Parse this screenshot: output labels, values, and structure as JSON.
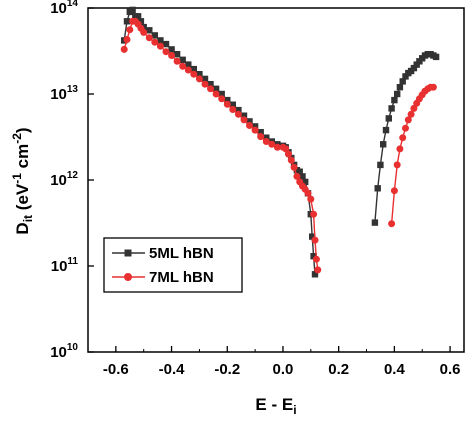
{
  "chart_data": {
    "type": "scatter",
    "xlabel": {
      "main": "E - E",
      "sub": "i"
    },
    "ylabel": {
      "main": "D",
      "sub": "it",
      "rest1": " (eV",
      "sup1": "-1",
      "rest2": " cm",
      "sup2": "-2",
      "rest3": ")"
    },
    "xlim": [
      -0.7,
      0.65
    ],
    "ylim_log10": [
      10,
      14
    ],
    "y_scale": "log",
    "x_ticks": [
      {
        "value": -0.6,
        "label": "-0.6"
      },
      {
        "value": -0.4,
        "label": "-0.4"
      },
      {
        "value": -0.2,
        "label": "-0.2"
      },
      {
        "value": 0.0,
        "label": "0.0"
      },
      {
        "value": 0.2,
        "label": "0.2"
      },
      {
        "value": 0.4,
        "label": "0.4"
      },
      {
        "value": 0.6,
        "label": "0.6"
      }
    ],
    "y_ticks": [
      {
        "exp": 10,
        "base": "10",
        "sup": "10"
      },
      {
        "exp": 11,
        "base": "10",
        "sup": "11"
      },
      {
        "exp": 12,
        "base": "10",
        "sup": "12"
      },
      {
        "exp": 13,
        "base": "10",
        "sup": "13"
      },
      {
        "exp": 14,
        "base": "10",
        "sup": "14"
      }
    ],
    "legend_position": "lower-left",
    "series": [
      {
        "name": "5ML hBN",
        "color": "#333333",
        "marker": "square",
        "segments": [
          [
            [
              -0.57,
              42000000000000.0
            ],
            [
              -0.56,
              70000000000000.0
            ],
            [
              -0.55,
              90000000000000.0
            ],
            [
              -0.54,
              95000000000000.0
            ],
            [
              -0.53,
              80000000000000.0
            ],
            [
              -0.52,
              80000000000000.0
            ],
            [
              -0.51,
              70000000000000.0
            ],
            [
              -0.5,
              60000000000000.0
            ],
            [
              -0.48,
              55000000000000.0
            ],
            [
              -0.46,
              48000000000000.0
            ],
            [
              -0.44,
              42000000000000.0
            ],
            [
              -0.42,
              38000000000000.0
            ],
            [
              -0.4,
              33000000000000.0
            ],
            [
              -0.38,
              29000000000000.0
            ],
            [
              -0.36,
              25000000000000.0
            ],
            [
              -0.34,
              22000000000000.0
            ],
            [
              -0.32,
              19500000000000.0
            ],
            [
              -0.3,
              17000000000000.0
            ],
            [
              -0.28,
              15000000000000.0
            ],
            [
              -0.26,
              13000000000000.0
            ],
            [
              -0.24,
              11500000000000.0
            ],
            [
              -0.22,
              10000000000000.0
            ],
            [
              -0.2,
              8500000000000.0
            ],
            [
              -0.18,
              7500000000000.0
            ],
            [
              -0.16,
              6500000000000.0
            ],
            [
              -0.14,
              5600000000000.0
            ],
            [
              -0.12,
              4800000000000.0
            ],
            [
              -0.1,
              4200000000000.0
            ],
            [
              -0.08,
              3600000000000.0
            ],
            [
              -0.06,
              3100000000000.0
            ],
            [
              -0.04,
              2800000000000.0
            ],
            [
              -0.02,
              2600000000000.0
            ],
            [
              0.0,
              2500000000000.0
            ],
            [
              0.01,
              2400000000000.0
            ],
            [
              0.02,
              2100000000000.0
            ],
            [
              0.03,
              1800000000000.0
            ],
            [
              0.04,
              1500000000000.0
            ],
            [
              0.05,
              1300000000000.0
            ],
            [
              0.06,
              1250000000000.0
            ],
            [
              0.07,
              1100000000000.0
            ],
            [
              0.08,
              950000000000.0
            ],
            [
              0.09,
              700000000000.0
            ],
            [
              0.1,
              400000000000.0
            ],
            [
              0.105,
              220000000000.0
            ],
            [
              0.11,
              130000000000.0
            ],
            [
              0.115,
              80000000000.0
            ]
          ],
          [
            [
              0.33,
              320000000000.0
            ],
            [
              0.34,
              800000000000.0
            ],
            [
              0.35,
              1500000000000.0
            ],
            [
              0.36,
              2600000000000.0
            ],
            [
              0.37,
              3800000000000.0
            ],
            [
              0.38,
              5200000000000.0
            ],
            [
              0.39,
              6800000000000.0
            ],
            [
              0.4,
              8500000000000.0
            ],
            [
              0.41,
              10000000000000.0
            ],
            [
              0.42,
              12000000000000.0
            ],
            [
              0.43,
              14000000000000.0
            ],
            [
              0.44,
              16000000000000.0
            ],
            [
              0.45,
              17500000000000.0
            ],
            [
              0.46,
              18500000000000.0
            ],
            [
              0.47,
              20000000000000.0
            ],
            [
              0.48,
              22000000000000.0
            ],
            [
              0.49,
              24000000000000.0
            ],
            [
              0.5,
              26000000000000.0
            ],
            [
              0.51,
              28000000000000.0
            ],
            [
              0.52,
              29000000000000.0
            ],
            [
              0.53,
              29000000000000.0
            ],
            [
              0.54,
              28000000000000.0
            ],
            [
              0.55,
              27000000000000.0
            ]
          ]
        ]
      },
      {
        "name": "7ML hBN",
        "color": "#e83030",
        "marker": "circle",
        "segments": [
          [
            [
              -0.57,
              33000000000000.0
            ],
            [
              -0.56,
              43000000000000.0
            ],
            [
              -0.55,
              56000000000000.0
            ],
            [
              -0.54,
              70000000000000.0
            ],
            [
              -0.53,
              70000000000000.0
            ],
            [
              -0.52,
              65000000000000.0
            ],
            [
              -0.51,
              58000000000000.0
            ],
            [
              -0.5,
              52000000000000.0
            ],
            [
              -0.48,
              45000000000000.0
            ],
            [
              -0.46,
              40000000000000.0
            ],
            [
              -0.44,
              36000000000000.0
            ],
            [
              -0.42,
              31000000000000.0
            ],
            [
              -0.4,
              28000000000000.0
            ],
            [
              -0.38,
              24000000000000.0
            ],
            [
              -0.36,
              21000000000000.0
            ],
            [
              -0.34,
              19000000000000.0
            ],
            [
              -0.32,
              17000000000000.0
            ],
            [
              -0.3,
              15000000000000.0
            ],
            [
              -0.28,
              13000000000000.0
            ],
            [
              -0.26,
              11500000000000.0
            ],
            [
              -0.24,
              10000000000000.0
            ],
            [
              -0.22,
              8800000000000.0
            ],
            [
              -0.2,
              7600000000000.0
            ],
            [
              -0.18,
              6600000000000.0
            ],
            [
              -0.16,
              5800000000000.0
            ],
            [
              -0.14,
              5000000000000.0
            ],
            [
              -0.12,
              4300000000000.0
            ],
            [
              -0.1,
              3800000000000.0
            ],
            [
              -0.08,
              3200000000000.0
            ],
            [
              -0.06,
              2800000000000.0
            ],
            [
              -0.04,
              2600000000000.0
            ],
            [
              -0.02,
              2400000000000.0
            ],
            [
              0.0,
              2400000000000.0
            ],
            [
              0.01,
              2300000000000.0
            ],
            [
              0.02,
              2000000000000.0
            ],
            [
              0.03,
              1700000000000.0
            ],
            [
              0.04,
              1400000000000.0
            ],
            [
              0.05,
              1100000000000.0
            ],
            [
              0.06,
              950000000000.0
            ],
            [
              0.07,
              850000000000.0
            ],
            [
              0.08,
              780000000000.0
            ],
            [
              0.09,
              700000000000.0
            ],
            [
              0.1,
              600000000000.0
            ],
            [
              0.11,
              400000000000.0
            ],
            [
              0.115,
              200000000000.0
            ],
            [
              0.12,
              120000000000.0
            ],
            [
              0.125,
              90000000000.0
            ]
          ],
          [
            [
              0.39,
              310000000000.0
            ],
            [
              0.4,
              750000000000.0
            ],
            [
              0.41,
              1500000000000.0
            ],
            [
              0.42,
              2300000000000.0
            ],
            [
              0.43,
              3100000000000.0
            ],
            [
              0.44,
              4000000000000.0
            ],
            [
              0.45,
              5000000000000.0
            ],
            [
              0.46,
              5800000000000.0
            ],
            [
              0.47,
              6800000000000.0
            ],
            [
              0.48,
              7800000000000.0
            ],
            [
              0.49,
              8800000000000.0
            ],
            [
              0.5,
              9800000000000.0
            ],
            [
              0.51,
              10800000000000.0
            ],
            [
              0.52,
              11500000000000.0
            ],
            [
              0.53,
              12000000000000.0
            ],
            [
              0.54,
              12000000000000.0
            ]
          ]
        ]
      }
    ]
  }
}
